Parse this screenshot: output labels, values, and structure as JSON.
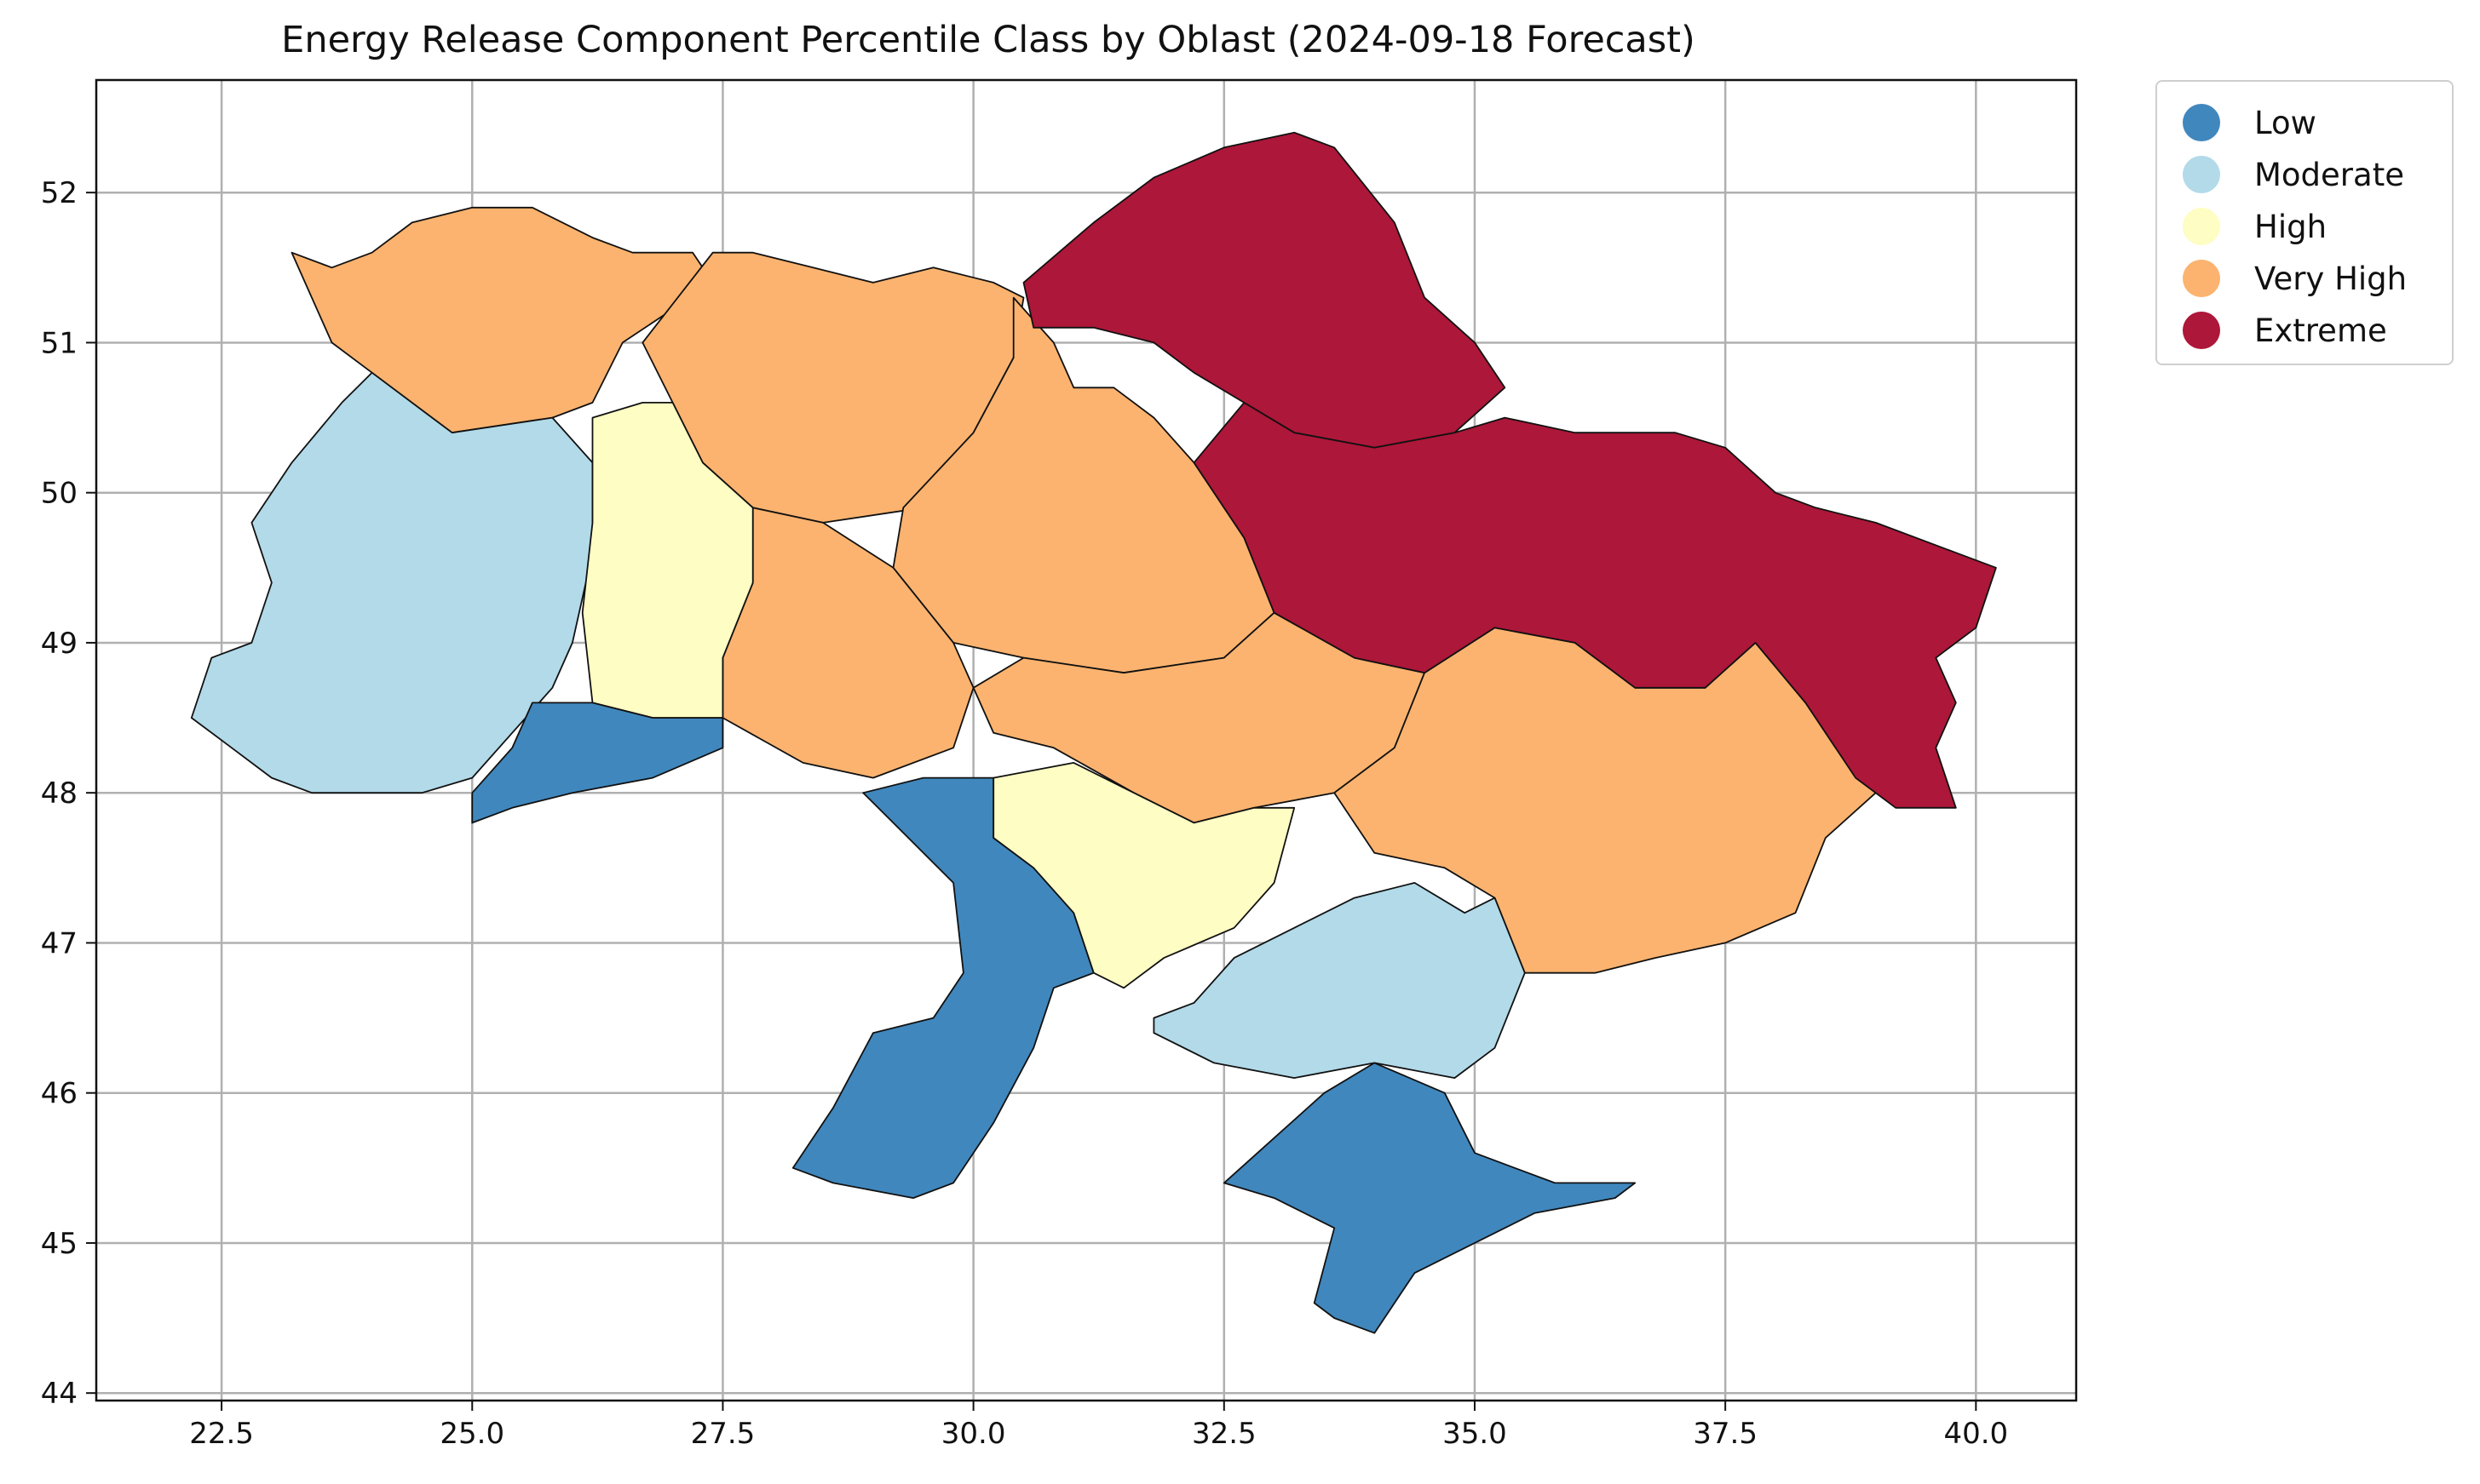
{
  "title": "Energy Release Component Percentile Class by Oblast (2024-09-18 Forecast)",
  "colors": {
    "Low": "#4087bd",
    "Moderate": "#b2dae9",
    "High": "#fefdc3",
    "Very High": "#fbb36f",
    "Extreme": "#ad1739"
  },
  "legend": [
    "Low",
    "Moderate",
    "High",
    "Very High",
    "Extreme"
  ],
  "chart_data": {
    "type": "choropleth",
    "x_ticks": [
      "22.5",
      "25.0",
      "27.5",
      "30.0",
      "32.5",
      "35.0",
      "37.5",
      "40.0"
    ],
    "y_ticks": [
      "44",
      "45",
      "46",
      "47",
      "48",
      "49",
      "50",
      "51",
      "52"
    ],
    "xlim": [
      21.25,
      41.0
    ],
    "ylim": [
      43.95,
      52.75
    ],
    "grid": true,
    "legend_position": "outside-top-right",
    "regions": [
      {
        "class": "Very High",
        "points": [
          [
            23.2,
            51.6
          ],
          [
            23.6,
            51.5
          ],
          [
            24.0,
            51.6
          ],
          [
            24.4,
            51.8
          ],
          [
            25.0,
            51.9
          ],
          [
            25.6,
            51.9
          ],
          [
            26.2,
            51.7
          ],
          [
            26.6,
            51.6
          ],
          [
            27.2,
            51.6
          ],
          [
            27.4,
            51.4
          ],
          [
            26.5,
            51.0
          ],
          [
            26.2,
            50.6
          ],
          [
            25.8,
            50.5
          ],
          [
            24.8,
            50.4
          ],
          [
            24.0,
            50.8
          ],
          [
            23.6,
            51.0
          ],
          [
            23.4,
            51.3
          ]
        ]
      },
      {
        "class": "Very High",
        "points": [
          [
            27.4,
            51.6
          ],
          [
            27.8,
            51.6
          ],
          [
            28.4,
            51.5
          ],
          [
            29.0,
            51.4
          ],
          [
            29.6,
            51.5
          ],
          [
            30.2,
            51.4
          ],
          [
            30.5,
            51.3
          ],
          [
            30.4,
            50.9
          ],
          [
            30.0,
            50.4
          ],
          [
            29.5,
            49.9
          ],
          [
            28.5,
            49.8
          ],
          [
            27.8,
            49.9
          ],
          [
            27.3,
            50.2
          ],
          [
            27.0,
            50.6
          ],
          [
            26.7,
            51.0
          ]
        ]
      },
      {
        "class": "Very High",
        "points": [
          [
            30.4,
            51.3
          ],
          [
            30.8,
            51.0
          ],
          [
            31.0,
            50.7
          ],
          [
            31.4,
            50.7
          ],
          [
            31.8,
            50.5
          ],
          [
            32.2,
            50.2
          ],
          [
            32.7,
            49.7
          ],
          [
            33.0,
            49.2
          ],
          [
            32.5,
            48.9
          ],
          [
            31.5,
            48.8
          ],
          [
            30.5,
            48.9
          ],
          [
            29.8,
            49.0
          ],
          [
            29.2,
            49.5
          ],
          [
            29.3,
            49.9
          ],
          [
            30.0,
            50.4
          ],
          [
            30.4,
            50.9
          ]
        ]
      },
      {
        "class": "Very High",
        "points": [
          [
            27.8,
            49.9
          ],
          [
            28.5,
            49.8
          ],
          [
            29.2,
            49.5
          ],
          [
            29.8,
            49.0
          ],
          [
            30.0,
            48.7
          ],
          [
            29.8,
            48.3
          ],
          [
            29.0,
            48.1
          ],
          [
            28.3,
            48.2
          ],
          [
            27.5,
            48.5
          ],
          [
            27.5,
            48.9
          ],
          [
            27.8,
            49.4
          ]
        ]
      },
      {
        "class": "Very High",
        "points": [
          [
            30.0,
            48.7
          ],
          [
            30.5,
            48.9
          ],
          [
            31.5,
            48.8
          ],
          [
            32.5,
            48.9
          ],
          [
            33.0,
            49.2
          ],
          [
            33.8,
            48.9
          ],
          [
            34.5,
            48.8
          ],
          [
            34.2,
            48.3
          ],
          [
            33.6,
            48.0
          ],
          [
            32.8,
            47.9
          ],
          [
            32.2,
            47.8
          ],
          [
            31.6,
            48.0
          ],
          [
            30.8,
            48.3
          ],
          [
            30.2,
            48.4
          ]
        ]
      },
      {
        "class": "Very High",
        "points": [
          [
            34.5,
            48.8
          ],
          [
            35.2,
            49.1
          ],
          [
            36.0,
            49.0
          ],
          [
            36.6,
            48.7
          ],
          [
            37.3,
            48.7
          ],
          [
            37.8,
            49.0
          ],
          [
            38.3,
            48.6
          ],
          [
            38.6,
            48.3
          ],
          [
            39.0,
            48.0
          ],
          [
            38.5,
            47.7
          ],
          [
            38.2,
            47.2
          ],
          [
            37.5,
            47.0
          ],
          [
            36.8,
            46.9
          ],
          [
            36.2,
            46.8
          ],
          [
            35.5,
            46.8
          ],
          [
            35.2,
            47.3
          ],
          [
            34.7,
            47.5
          ],
          [
            34.0,
            47.6
          ],
          [
            33.6,
            48.0
          ],
          [
            34.2,
            48.3
          ]
        ]
      },
      {
        "class": "Extreme",
        "points": [
          [
            30.5,
            51.4
          ],
          [
            31.2,
            51.8
          ],
          [
            31.8,
            52.1
          ],
          [
            32.5,
            52.3
          ],
          [
            33.2,
            52.4
          ],
          [
            33.6,
            52.3
          ],
          [
            34.2,
            51.8
          ],
          [
            34.5,
            51.3
          ],
          [
            35.0,
            51.0
          ],
          [
            35.3,
            50.7
          ],
          [
            34.8,
            50.4
          ],
          [
            34.0,
            50.3
          ],
          [
            33.2,
            50.4
          ],
          [
            32.7,
            50.6
          ],
          [
            32.2,
            50.8
          ],
          [
            31.8,
            51.0
          ],
          [
            31.2,
            51.1
          ],
          [
            30.6,
            51.1
          ]
        ]
      },
      {
        "class": "Extreme",
        "points": [
          [
            32.2,
            50.2
          ],
          [
            32.7,
            50.6
          ],
          [
            33.2,
            50.4
          ],
          [
            34.0,
            50.3
          ],
          [
            34.8,
            50.4
          ],
          [
            35.3,
            50.5
          ],
          [
            36.0,
            50.4
          ],
          [
            37.0,
            50.4
          ],
          [
            37.5,
            50.3
          ],
          [
            38.0,
            50.0
          ],
          [
            38.4,
            49.9
          ],
          [
            39.0,
            49.8
          ],
          [
            39.8,
            49.6
          ],
          [
            40.2,
            49.5
          ],
          [
            40.0,
            49.1
          ],
          [
            39.6,
            48.9
          ],
          [
            39.8,
            48.6
          ],
          [
            39.6,
            48.3
          ],
          [
            39.8,
            47.9
          ],
          [
            39.2,
            47.9
          ],
          [
            38.8,
            48.1
          ],
          [
            38.3,
            48.6
          ],
          [
            37.8,
            49.0
          ],
          [
            37.3,
            48.7
          ],
          [
            36.6,
            48.7
          ],
          [
            36.0,
            49.0
          ],
          [
            35.2,
            49.1
          ],
          [
            34.5,
            48.8
          ],
          [
            33.8,
            48.9
          ],
          [
            33.0,
            49.2
          ],
          [
            32.7,
            49.7
          ]
        ]
      },
      {
        "class": "Moderate",
        "points": [
          [
            23.7,
            50.6
          ],
          [
            24.0,
            50.8
          ],
          [
            24.8,
            50.4
          ],
          [
            25.8,
            50.5
          ],
          [
            26.2,
            50.2
          ],
          [
            26.2,
            49.6
          ],
          [
            26.0,
            49.0
          ],
          [
            25.8,
            48.7
          ],
          [
            25.4,
            48.4
          ],
          [
            25.0,
            48.1
          ],
          [
            24.5,
            48.0
          ],
          [
            24.0,
            48.0
          ],
          [
            23.4,
            48.0
          ],
          [
            23.0,
            48.1
          ],
          [
            22.6,
            48.3
          ],
          [
            22.2,
            48.5
          ],
          [
            22.4,
            48.9
          ],
          [
            22.8,
            49.0
          ],
          [
            23.0,
            49.4
          ],
          [
            22.8,
            49.8
          ],
          [
            23.2,
            50.2
          ]
        ]
      },
      {
        "class": "High",
        "points": [
          [
            26.2,
            50.5
          ],
          [
            26.7,
            50.6
          ],
          [
            27.0,
            50.6
          ],
          [
            27.3,
            50.2
          ],
          [
            27.8,
            49.9
          ],
          [
            27.8,
            49.4
          ],
          [
            27.5,
            48.9
          ],
          [
            27.5,
            48.5
          ],
          [
            26.8,
            48.5
          ],
          [
            26.2,
            48.6
          ],
          [
            26.1,
            49.2
          ],
          [
            26.2,
            49.8
          ]
        ]
      },
      {
        "class": "Low",
        "points": [
          [
            25.6,
            48.6
          ],
          [
            26.2,
            48.6
          ],
          [
            26.8,
            48.5
          ],
          [
            27.5,
            48.5
          ],
          [
            27.5,
            48.3
          ],
          [
            26.8,
            48.1
          ],
          [
            26.0,
            48.0
          ],
          [
            25.4,
            47.9
          ],
          [
            25.0,
            47.8
          ],
          [
            25.0,
            48.0
          ],
          [
            25.4,
            48.3
          ]
        ]
      },
      {
        "class": "Low",
        "points": [
          [
            29.5,
            48.1
          ],
          [
            30.2,
            48.1
          ],
          [
            30.2,
            47.7
          ],
          [
            30.6,
            47.5
          ],
          [
            31.0,
            47.2
          ],
          [
            31.2,
            46.8
          ],
          [
            30.8,
            46.7
          ],
          [
            30.6,
            46.3
          ],
          [
            30.2,
            45.8
          ],
          [
            29.8,
            45.4
          ],
          [
            29.4,
            45.3
          ],
          [
            28.6,
            45.4
          ],
          [
            28.2,
            45.5
          ],
          [
            28.6,
            45.9
          ],
          [
            29.0,
            46.4
          ],
          [
            29.6,
            46.5
          ],
          [
            29.9,
            46.8
          ],
          [
            29.8,
            47.4
          ],
          [
            29.2,
            47.8
          ],
          [
            28.9,
            48.0
          ]
        ]
      },
      {
        "class": "Low",
        "points": [
          [
            32.5,
            45.4
          ],
          [
            33.0,
            45.7
          ],
          [
            33.5,
            46.0
          ],
          [
            34.0,
            46.2
          ],
          [
            34.7,
            46.0
          ],
          [
            35.0,
            45.6
          ],
          [
            35.8,
            45.4
          ],
          [
            36.6,
            45.4
          ],
          [
            36.4,
            45.3
          ],
          [
            35.6,
            45.2
          ],
          [
            35.0,
            45.0
          ],
          [
            34.4,
            44.8
          ],
          [
            34.0,
            44.4
          ],
          [
            33.6,
            44.5
          ],
          [
            33.4,
            44.6
          ],
          [
            33.6,
            45.1
          ],
          [
            33.0,
            45.3
          ]
        ]
      },
      {
        "class": "High",
        "points": [
          [
            30.2,
            48.1
          ],
          [
            31.0,
            48.2
          ],
          [
            31.6,
            48.0
          ],
          [
            32.2,
            47.8
          ],
          [
            32.8,
            47.9
          ],
          [
            33.2,
            47.9
          ],
          [
            33.0,
            47.4
          ],
          [
            32.6,
            47.1
          ],
          [
            31.9,
            46.9
          ],
          [
            31.5,
            46.7
          ],
          [
            31.2,
            46.8
          ],
          [
            31.0,
            47.2
          ],
          [
            30.6,
            47.5
          ],
          [
            30.2,
            47.7
          ]
        ]
      },
      {
        "class": "Moderate",
        "points": [
          [
            31.8,
            46.5
          ],
          [
            32.2,
            46.6
          ],
          [
            32.6,
            46.9
          ],
          [
            33.2,
            47.1
          ],
          [
            33.8,
            47.3
          ],
          [
            34.4,
            47.4
          ],
          [
            34.9,
            47.2
          ],
          [
            35.2,
            47.3
          ],
          [
            35.5,
            46.8
          ],
          [
            35.2,
            46.3
          ],
          [
            34.8,
            46.1
          ],
          [
            34.0,
            46.2
          ],
          [
            33.2,
            46.1
          ],
          [
            32.4,
            46.2
          ],
          [
            31.8,
            46.4
          ]
        ]
      }
    ]
  }
}
